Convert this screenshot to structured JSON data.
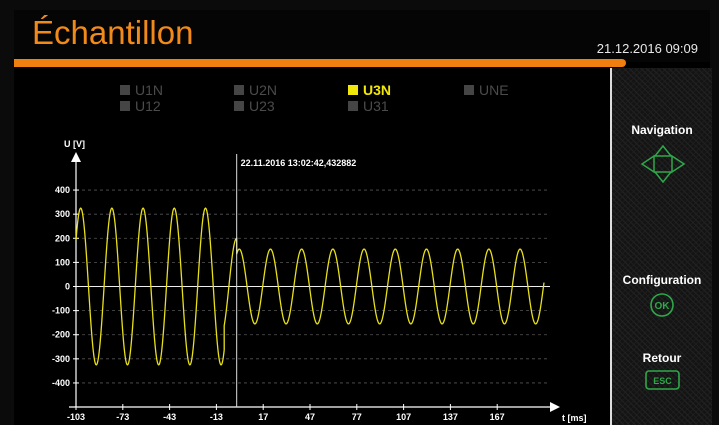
{
  "header": {
    "title": "Échantillon",
    "datetime": "21.12.2016  09:09",
    "accent_color": "#f07f10"
  },
  "legend": [
    {
      "label": "U1N",
      "active": false
    },
    {
      "label": "U2N",
      "active": false
    },
    {
      "label": "U3N",
      "active": true
    },
    {
      "label": "UNE",
      "active": false
    },
    {
      "label": "U12",
      "active": false
    },
    {
      "label": "U23",
      "active": false
    },
    {
      "label": "U31",
      "active": false
    }
  ],
  "sidebar": {
    "navigation_label": "Navigation",
    "navigation_icon": "arrow-pad-icon",
    "configuration_label": "Configuration",
    "configuration_icon": "ok-button-icon",
    "configuration_icon_text": "OK",
    "retour_label": "Retour",
    "retour_icon": "esc-button-icon",
    "retour_icon_text": "ESC",
    "icon_color": "#2ea84a"
  },
  "chart_data": {
    "type": "line",
    "ylabel": "U [V]",
    "xlabel": "t [ms]",
    "cursor_label": "22.11.2016 13:02:42,432882",
    "cursor_x": 0,
    "x_ticks": [
      -103,
      -73,
      -43,
      -13,
      17,
      47,
      77,
      107,
      137,
      167
    ],
    "y_ticks": [
      400,
      300,
      200,
      100,
      0,
      -100,
      -200,
      -300,
      -400
    ],
    "xlim": [
      -103,
      197
    ],
    "ylim": [
      -450,
      450
    ],
    "grid": true,
    "series": [
      {
        "name": "U3N",
        "color": "#e8e01a",
        "segments": [
          {
            "x_start": -103,
            "x_end": -8,
            "amplitude": 325,
            "period_ms": 20,
            "phase_deg": 90
          },
          {
            "x_start": -8,
            "x_end": 0,
            "amplitude": 200,
            "period_ms": 20,
            "phase_deg": 90
          },
          {
            "x_start": 0,
            "x_end": 197,
            "amplitude": 155,
            "period_ms": 20,
            "phase_deg": 60
          }
        ]
      }
    ]
  }
}
